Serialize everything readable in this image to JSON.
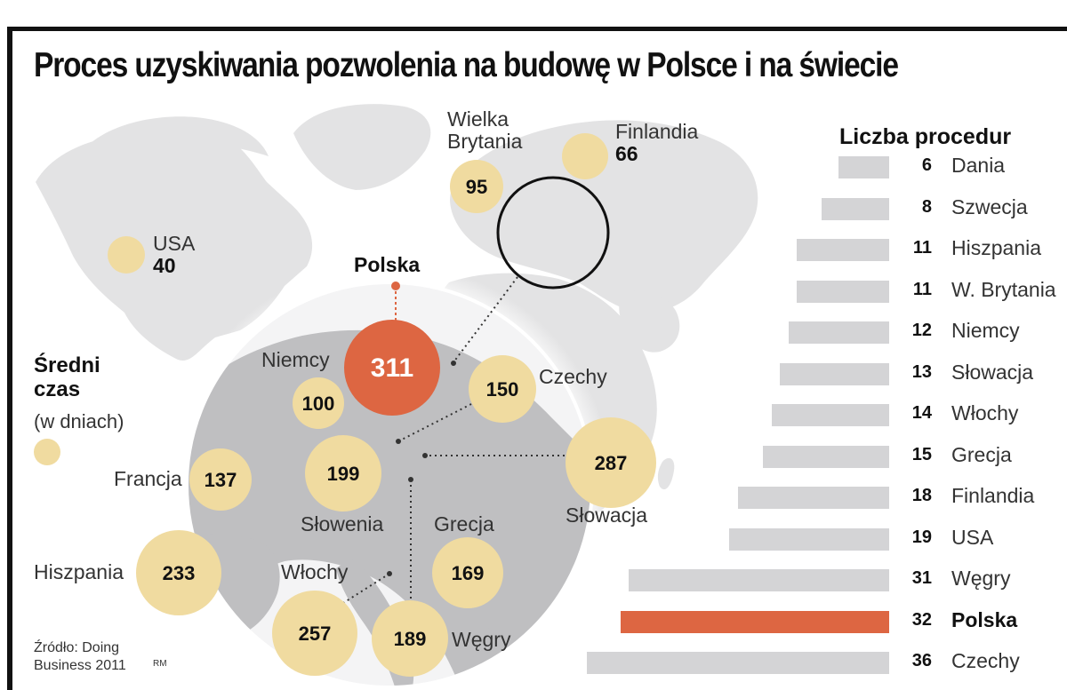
{
  "title": "Proces uzyskiwania pozwolenia na budowę w Polsce i na świecie",
  "legend": {
    "title_line1": "Średni",
    "title_line2": "czas",
    "subtitle": "(w dniach)"
  },
  "source": {
    "line1": "Źródło: Doing",
    "line2": "Business 2011",
    "mark": "RM"
  },
  "colors": {
    "bubble": "#f0dba0",
    "highlight": "#dd6642",
    "bar": "#d4d4d6",
    "map_land": "#e3e3e4",
    "inset_land": "#bfbfc1"
  },
  "chart_data": [
    {
      "type": "bubble-map",
      "legend_title": "Średni czas (w dniach)",
      "units": "dni",
      "points": [
        {
          "country": "USA",
          "value": 40
        },
        {
          "country": "Wielka Brytania",
          "value": 95
        },
        {
          "country": "Finlandia",
          "value": 66
        },
        {
          "country": "Polska",
          "value": 311,
          "highlight": true
        },
        {
          "country": "Niemcy",
          "value": 100
        },
        {
          "country": "Czechy",
          "value": 150
        },
        {
          "country": "Francja",
          "value": 137
        },
        {
          "country": "Słowenia",
          "value": 199
        },
        {
          "country": "Słowacja",
          "value": 287
        },
        {
          "country": "Hiszpania",
          "value": 233
        },
        {
          "country": "Grecja",
          "value": 169
        },
        {
          "country": "Włochy",
          "value": 257
        },
        {
          "country": "Węgry",
          "value": 189
        }
      ]
    },
    {
      "type": "bar",
      "orientation": "horizontal",
      "title": "Liczba procedur",
      "categories": [
        "Dania",
        "Szwecja",
        "Hiszpania",
        "W. Brytania",
        "Niemcy",
        "Słowacja",
        "Włochy",
        "Grecja",
        "Finlandia",
        "USA",
        "Węgry",
        "Polska",
        "Czechy"
      ],
      "values": [
        6,
        8,
        11,
        11,
        12,
        13,
        14,
        15,
        18,
        19,
        31,
        32,
        36
      ],
      "highlight": "Polska"
    }
  ]
}
